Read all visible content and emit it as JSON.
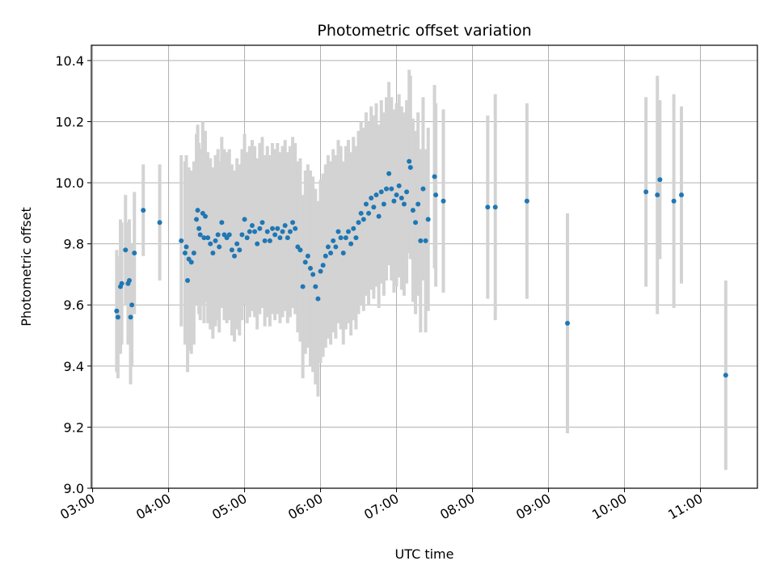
{
  "chart_data": {
    "type": "scatter",
    "title": "Photometric offset variation",
    "xlabel": "UTC time",
    "ylabel": "Photometric offset",
    "x_ticks": [
      "03:00",
      "04:00",
      "05:00",
      "06:00",
      "07:00",
      "08:00",
      "09:00",
      "10:00",
      "11:00"
    ],
    "y_ticks": [
      "9.0",
      "9.2",
      "9.4",
      "9.6",
      "9.8",
      "10.0",
      "10.2",
      "10.4"
    ],
    "xlim": [
      "02:59",
      "11:45"
    ],
    "ylim": [
      9.0,
      10.45
    ],
    "grid": true,
    "marker_color": "#1f77b4",
    "errorbar_color": "#d3d3d3",
    "series": [
      {
        "points": [
          {
            "x": "03:19",
            "y": 9.58,
            "err": 0.2
          },
          {
            "x": "03:20",
            "y": 9.56,
            "err": 0.2
          },
          {
            "x": "03:22",
            "y": 9.66,
            "err": 0.22
          },
          {
            "x": "03:23",
            "y": 9.67,
            "err": 0.2
          },
          {
            "x": "03:26",
            "y": 9.78,
            "err": 0.18
          },
          {
            "x": "03:28",
            "y": 9.67,
            "err": 0.2
          },
          {
            "x": "03:29",
            "y": 9.68,
            "err": 0.2
          },
          {
            "x": "03:30",
            "y": 9.56,
            "err": 0.22
          },
          {
            "x": "03:31",
            "y": 9.6,
            "err": 0.2
          },
          {
            "x": "03:33",
            "y": 9.77,
            "err": 0.2
          },
          {
            "x": "03:40",
            "y": 9.91,
            "err": 0.15
          },
          {
            "x": "03:53",
            "y": 9.87,
            "err": 0.19
          },
          {
            "x": "04:10",
            "y": 9.81,
            "err": 0.28
          },
          {
            "x": "04:13",
            "y": 9.77,
            "err": 0.3
          },
          {
            "x": "04:14",
            "y": 9.79,
            "err": 0.3
          },
          {
            "x": "04:15",
            "y": 9.68,
            "err": 0.3
          },
          {
            "x": "04:16",
            "y": 9.75,
            "err": 0.3
          },
          {
            "x": "04:18",
            "y": 9.74,
            "err": 0.3
          },
          {
            "x": "04:20",
            "y": 9.77,
            "err": 0.3
          },
          {
            "x": "04:22",
            "y": 9.88,
            "err": 0.28
          },
          {
            "x": "04:23",
            "y": 9.91,
            "err": 0.28
          },
          {
            "x": "04:24",
            "y": 9.85,
            "err": 0.28
          },
          {
            "x": "04:25",
            "y": 9.83,
            "err": 0.28
          },
          {
            "x": "04:27",
            "y": 9.9,
            "err": 0.3
          },
          {
            "x": "04:28",
            "y": 9.82,
            "err": 0.28
          },
          {
            "x": "04:29",
            "y": 9.89,
            "err": 0.28
          },
          {
            "x": "04:31",
            "y": 9.82,
            "err": 0.28
          },
          {
            "x": "04:33",
            "y": 9.8,
            "err": 0.28
          },
          {
            "x": "04:35",
            "y": 9.77,
            "err": 0.28
          },
          {
            "x": "04:37",
            "y": 9.81,
            "err": 0.28
          },
          {
            "x": "04:39",
            "y": 9.83,
            "err": 0.28
          },
          {
            "x": "04:40",
            "y": 9.79,
            "err": 0.28
          },
          {
            "x": "04:42",
            "y": 9.87,
            "err": 0.28
          },
          {
            "x": "04:44",
            "y": 9.83,
            "err": 0.28
          },
          {
            "x": "04:46",
            "y": 9.82,
            "err": 0.28
          },
          {
            "x": "04:48",
            "y": 9.83,
            "err": 0.28
          },
          {
            "x": "04:50",
            "y": 9.78,
            "err": 0.28
          },
          {
            "x": "04:52",
            "y": 9.76,
            "err": 0.28
          },
          {
            "x": "04:54",
            "y": 9.8,
            "err": 0.28
          },
          {
            "x": "04:56",
            "y": 9.78,
            "err": 0.28
          },
          {
            "x": "04:58",
            "y": 9.83,
            "err": 0.28
          },
          {
            "x": "05:00",
            "y": 9.88,
            "err": 0.28
          },
          {
            "x": "05:02",
            "y": 9.82,
            "err": 0.28
          },
          {
            "x": "05:04",
            "y": 9.84,
            "err": 0.28
          },
          {
            "x": "05:06",
            "y": 9.86,
            "err": 0.28
          },
          {
            "x": "05:08",
            "y": 9.84,
            "err": 0.28
          },
          {
            "x": "05:10",
            "y": 9.8,
            "err": 0.28
          },
          {
            "x": "05:12",
            "y": 9.85,
            "err": 0.28
          },
          {
            "x": "05:14",
            "y": 9.87,
            "err": 0.28
          },
          {
            "x": "05:16",
            "y": 9.81,
            "err": 0.28
          },
          {
            "x": "05:18",
            "y": 9.84,
            "err": 0.28
          },
          {
            "x": "05:20",
            "y": 9.81,
            "err": 0.28
          },
          {
            "x": "05:22",
            "y": 9.85,
            "err": 0.28
          },
          {
            "x": "05:24",
            "y": 9.83,
            "err": 0.28
          },
          {
            "x": "05:26",
            "y": 9.85,
            "err": 0.28
          },
          {
            "x": "05:28",
            "y": 9.82,
            "err": 0.28
          },
          {
            "x": "05:30",
            "y": 9.84,
            "err": 0.28
          },
          {
            "x": "05:32",
            "y": 9.86,
            "err": 0.28
          },
          {
            "x": "05:34",
            "y": 9.82,
            "err": 0.28
          },
          {
            "x": "05:36",
            "y": 9.84,
            "err": 0.28
          },
          {
            "x": "05:38",
            "y": 9.87,
            "err": 0.28
          },
          {
            "x": "05:40",
            "y": 9.85,
            "err": 0.28
          },
          {
            "x": "05:42",
            "y": 9.79,
            "err": 0.28
          },
          {
            "x": "05:44",
            "y": 9.78,
            "err": 0.3
          },
          {
            "x": "05:46",
            "y": 9.66,
            "err": 0.3
          },
          {
            "x": "05:48",
            "y": 9.74,
            "err": 0.3
          },
          {
            "x": "05:50",
            "y": 9.76,
            "err": 0.3
          },
          {
            "x": "05:52",
            "y": 9.72,
            "err": 0.32
          },
          {
            "x": "05:54",
            "y": 9.7,
            "err": 0.32
          },
          {
            "x": "05:56",
            "y": 9.66,
            "err": 0.32
          },
          {
            "x": "05:58",
            "y": 9.62,
            "err": 0.32
          },
          {
            "x": "06:00",
            "y": 9.71,
            "err": 0.3
          },
          {
            "x": "06:02",
            "y": 9.73,
            "err": 0.3
          },
          {
            "x": "06:04",
            "y": 9.76,
            "err": 0.3
          },
          {
            "x": "06:06",
            "y": 9.79,
            "err": 0.3
          },
          {
            "x": "06:08",
            "y": 9.77,
            "err": 0.3
          },
          {
            "x": "06:10",
            "y": 9.81,
            "err": 0.3
          },
          {
            "x": "06:12",
            "y": 9.79,
            "err": 0.3
          },
          {
            "x": "06:14",
            "y": 9.84,
            "err": 0.3
          },
          {
            "x": "06:16",
            "y": 9.82,
            "err": 0.3
          },
          {
            "x": "06:18",
            "y": 9.77,
            "err": 0.3
          },
          {
            "x": "06:20",
            "y": 9.82,
            "err": 0.3
          },
          {
            "x": "06:22",
            "y": 9.84,
            "err": 0.3
          },
          {
            "x": "06:24",
            "y": 9.8,
            "err": 0.3
          },
          {
            "x": "06:26",
            "y": 9.85,
            "err": 0.3
          },
          {
            "x": "06:28",
            "y": 9.82,
            "err": 0.3
          },
          {
            "x": "06:30",
            "y": 9.87,
            "err": 0.3
          },
          {
            "x": "06:32",
            "y": 9.9,
            "err": 0.3
          },
          {
            "x": "06:34",
            "y": 9.88,
            "err": 0.3
          },
          {
            "x": "06:36",
            "y": 9.93,
            "err": 0.3
          },
          {
            "x": "06:38",
            "y": 9.9,
            "err": 0.3
          },
          {
            "x": "06:40",
            "y": 9.95,
            "err": 0.3
          },
          {
            "x": "06:42",
            "y": 9.92,
            "err": 0.3
          },
          {
            "x": "06:44",
            "y": 9.96,
            "err": 0.3
          },
          {
            "x": "06:46",
            "y": 9.89,
            "err": 0.3
          },
          {
            "x": "06:48",
            "y": 9.97,
            "err": 0.3
          },
          {
            "x": "06:50",
            "y": 9.93,
            "err": 0.3
          },
          {
            "x": "06:52",
            "y": 9.98,
            "err": 0.3
          },
          {
            "x": "06:54",
            "y": 10.03,
            "err": 0.3
          },
          {
            "x": "06:56",
            "y": 9.98,
            "err": 0.3
          },
          {
            "x": "06:58",
            "y": 9.94,
            "err": 0.3
          },
          {
            "x": "07:00",
            "y": 9.96,
            "err": 0.3
          },
          {
            "x": "07:02",
            "y": 9.99,
            "err": 0.3
          },
          {
            "x": "07:04",
            "y": 9.95,
            "err": 0.3
          },
          {
            "x": "07:06",
            "y": 9.93,
            "err": 0.3
          },
          {
            "x": "07:08",
            "y": 9.97,
            "err": 0.3
          },
          {
            "x": "07:10",
            "y": 10.07,
            "err": 0.3
          },
          {
            "x": "07:11",
            "y": 10.05,
            "err": 0.3
          },
          {
            "x": "07:13",
            "y": 9.91,
            "err": 0.3
          },
          {
            "x": "07:15",
            "y": 9.87,
            "err": 0.3
          },
          {
            "x": "07:17",
            "y": 9.93,
            "err": 0.3
          },
          {
            "x": "07:19",
            "y": 9.81,
            "err": 0.3
          },
          {
            "x": "07:21",
            "y": 9.98,
            "err": 0.3
          },
          {
            "x": "07:23",
            "y": 9.81,
            "err": 0.3
          },
          {
            "x": "07:25",
            "y": 9.88,
            "err": 0.3
          },
          {
            "x": "07:30",
            "y": 10.02,
            "err": 0.3
          },
          {
            "x": "07:31",
            "y": 9.96,
            "err": 0.3
          },
          {
            "x": "07:37",
            "y": 9.94,
            "err": 0.3
          },
          {
            "x": "08:12",
            "y": 9.92,
            "err": 0.3
          },
          {
            "x": "08:18",
            "y": 9.92,
            "err": 0.37
          },
          {
            "x": "08:43",
            "y": 9.94,
            "err": 0.32
          },
          {
            "x": "09:15",
            "y": 9.54,
            "err": 0.36
          },
          {
            "x": "10:17",
            "y": 9.97,
            "err": 0.31
          },
          {
            "x": "10:26",
            "y": 9.96,
            "err": 0.39
          },
          {
            "x": "10:28",
            "y": 10.01,
            "err": 0.26
          },
          {
            "x": "10:39",
            "y": 9.94,
            "err": 0.35
          },
          {
            "x": "10:45",
            "y": 9.96,
            "err": 0.29
          },
          {
            "x": "11:20",
            "y": 9.37,
            "err": 0.31
          }
        ]
      }
    ]
  }
}
